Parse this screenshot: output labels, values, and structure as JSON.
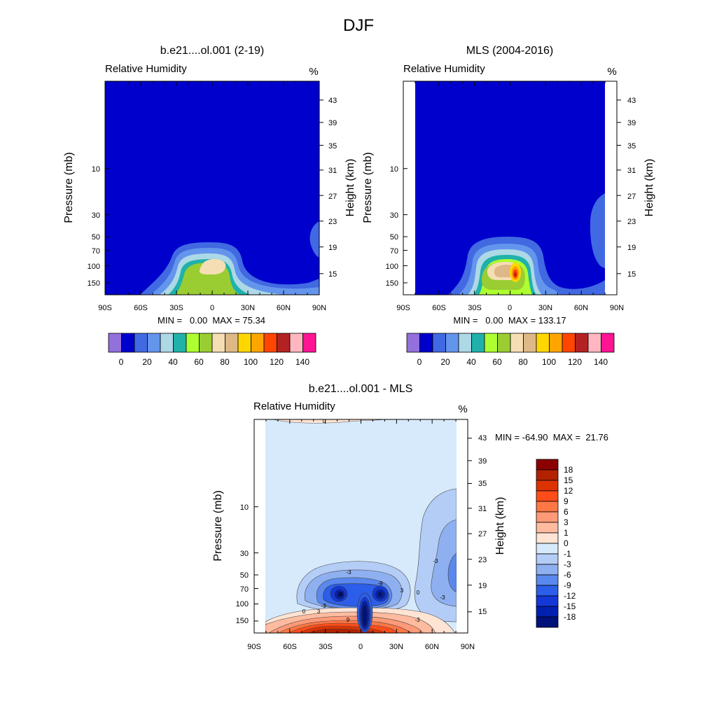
{
  "figure_title": "DJF",
  "chart_data": [
    {
      "type": "heatmap",
      "title": "b.e21....ol.001 (2-19)",
      "left_label": "Relative Humidity",
      "unit_label": "%",
      "ylabel": "Pressure (mb)",
      "ylabel_right": "Height (km)",
      "x_ticks": [
        "90S",
        "60S",
        "30S",
        "0",
        "30N",
        "60N",
        "90N"
      ],
      "xlim": [
        -90,
        90
      ],
      "y_ticks": [
        "10",
        "30",
        "50",
        "70",
        "100",
        "150"
      ],
      "y_right_ticks": [
        "43",
        "39",
        "35",
        "31",
        "27",
        "23",
        "19",
        "15"
      ],
      "stats_text": "MIN =   0.00  MAX = 75.34",
      "min": 0.0,
      "max": 75.34,
      "colorbar_labels": [
        "0",
        "20",
        "40",
        "60",
        "80",
        "100",
        "120",
        "140"
      ],
      "colorbar_colors": [
        "#9370db",
        "#0000cd",
        "#4169e1",
        "#6495ed",
        "#add8e6",
        "#20b2aa",
        "#adff2f",
        "#9acd32",
        "#f5deb3",
        "#deb887",
        "#ffd700",
        "#ffa500",
        "#ff4500",
        "#b22222",
        "#ffb6c1",
        "#ff1493"
      ],
      "features": [
        {
          "name": "tropical upper-troposphere moist region",
          "lat_range": [
            -40,
            18
          ],
          "pressure_range_mb": [
            160,
            60
          ],
          "max_value": 75.34
        },
        {
          "name": "northern polar moist region",
          "lat_range": [
            78,
            90
          ],
          "pressure_range_mb": [
            50,
            25
          ]
        }
      ]
    },
    {
      "type": "heatmap",
      "title": "MLS (2004-2016)",
      "left_label": "Relative Humidity",
      "unit_label": "%",
      "ylabel": "Pressure (mb)",
      "ylabel_right": "Height (km)",
      "x_ticks": [
        "90S",
        "60S",
        "30S",
        "0",
        "30N",
        "60N",
        "90N"
      ],
      "xlim": [
        -90,
        90
      ],
      "y_ticks": [
        "10",
        "30",
        "50",
        "70",
        "100",
        "150"
      ],
      "y_right_ticks": [
        "43",
        "39",
        "35",
        "31",
        "27",
        "23",
        "19",
        "15"
      ],
      "stats_text": "MIN =   0.00  MAX = 133.17",
      "min": 0.0,
      "max": 133.17,
      "data_lat_range": [
        -80,
        80
      ],
      "colorbar_labels": [
        "0",
        "20",
        "40",
        "60",
        "80",
        "100",
        "120",
        "140"
      ],
      "colorbar_colors": [
        "#9370db",
        "#0000cd",
        "#4169e1",
        "#6495ed",
        "#add8e6",
        "#20b2aa",
        "#adff2f",
        "#9acd32",
        "#f5deb3",
        "#deb887",
        "#ffd700",
        "#ffa500",
        "#ff4500",
        "#b22222",
        "#ffb6c1",
        "#ff1493"
      ],
      "features": [
        {
          "name": "tropical upper-troposphere moist region",
          "lat_range": [
            -40,
            20
          ],
          "pressure_range_mb": [
            160,
            60
          ],
          "max_value": 133.17,
          "peak_lat": 5,
          "peak_pressure_mb": 120
        },
        {
          "name": "northern high-latitude moist region",
          "lat_range": [
            68,
            80
          ],
          "pressure_range_mb": [
            100,
            25
          ]
        }
      ]
    },
    {
      "type": "heatmap",
      "title": "b.e21....ol.001 - MLS",
      "left_label": "Relative Humidity",
      "unit_label": "%",
      "ylabel": "Pressure (mb)",
      "ylabel_right": "Height (km)",
      "x_ticks": [
        "90S",
        "60S",
        "30S",
        "0",
        "30N",
        "60N",
        "90N"
      ],
      "xlim": [
        -90,
        90
      ],
      "y_ticks": [
        "10",
        "30",
        "50",
        "70",
        "100",
        "150"
      ],
      "y_right_ticks": [
        "43",
        "39",
        "35",
        "31",
        "27",
        "23",
        "19",
        "15"
      ],
      "stats_text": "MIN = -64.90  MAX =  21.76",
      "min": -64.9,
      "max": 21.76,
      "data_lat_range": [
        -80,
        80
      ],
      "colorbar_labels": [
        "18",
        "15",
        "12",
        "9",
        "6",
        "3",
        "1",
        "0",
        "-1",
        "-3",
        "-6",
        "-9",
        "-12",
        "-15",
        "-18"
      ],
      "colorbar_colors": [
        "#8b0000",
        "#b22200",
        "#dd3300",
        "#ff4d1a",
        "#ff7744",
        "#ff9977",
        "#ffbba0",
        "#ffe4d4",
        "#d6eafc",
        "#b4cdf7",
        "#8fb0f0",
        "#5a88ec",
        "#2c5eea",
        "#1438d8",
        "#0020b0",
        "#00127a"
      ],
      "contour_labels": [
        "0",
        "-3",
        "-9",
        "-9",
        "3",
        "-3",
        "0",
        "3",
        "9",
        "-3",
        "-3",
        "0",
        "-3"
      ],
      "features": [
        {
          "name": "southern dry bias cell",
          "lat_range": [
            -45,
            -5
          ],
          "pressure_range_mb": [
            100,
            40
          ],
          "min_value": -18
        },
        {
          "name": "northern dry bias cell",
          "lat_range": [
            5,
            35
          ],
          "pressure_range_mb": [
            100,
            40
          ],
          "min_value": -18
        },
        {
          "name": "equatorial dry column",
          "lat_range": [
            -2,
            10
          ],
          "pressure_range_mb": [
            180,
            80
          ],
          "min_value": -64.9
        },
        {
          "name": "lower tropical wet bias",
          "lat_range": [
            -80,
            60
          ],
          "pressure_range_mb": [
            180,
            120
          ],
          "max_value": 21.76
        },
        {
          "name": "northern high-latitude dry bias",
          "lat_range": [
            45,
            80
          ],
          "pressure_range_mb": [
            150,
            8
          ]
        },
        {
          "name": "top-level wet sliver",
          "lat_range": [
            -25,
            15
          ],
          "pressure_range_mb": [
            2.5,
            2
          ]
        }
      ]
    }
  ]
}
